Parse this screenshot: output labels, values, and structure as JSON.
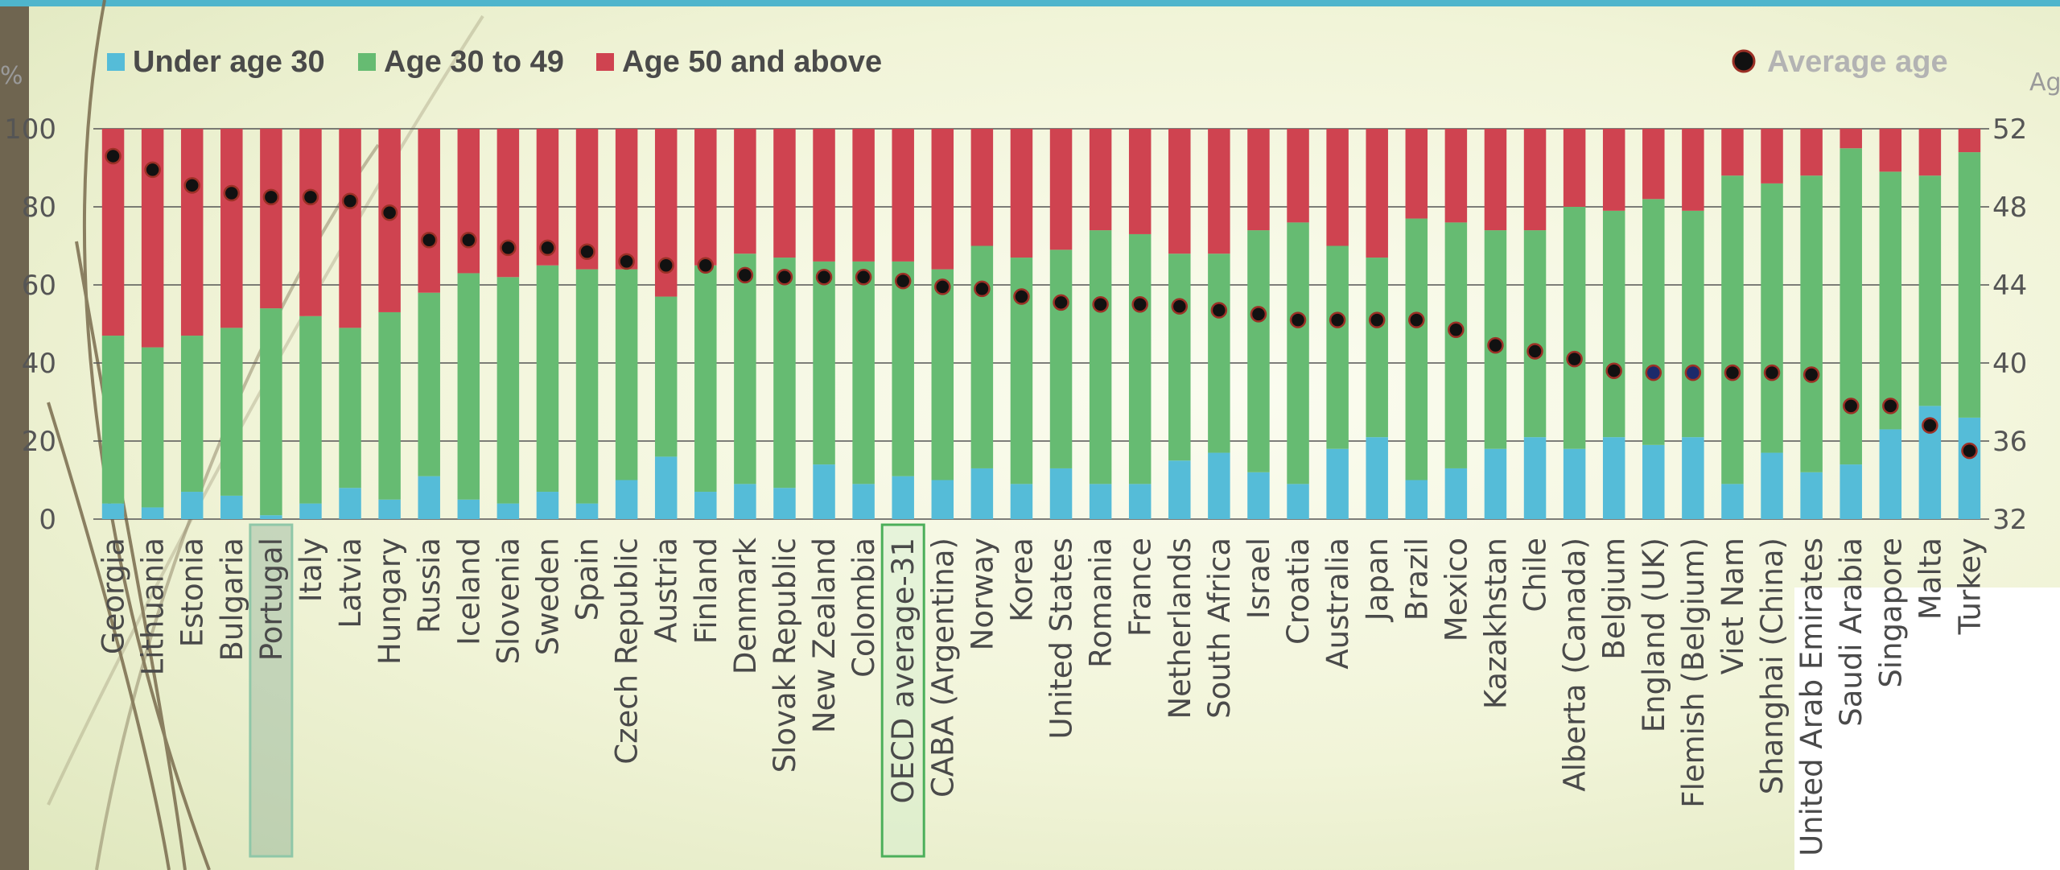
{
  "chart_data": {
    "type": "bar",
    "stacked": true,
    "categories": [
      "Georgia",
      "Lithuania",
      "Estonia",
      "Bulgaria",
      "Portugal",
      "Italy",
      "Latvia",
      "Hungary",
      "Russia",
      "Iceland",
      "Slovenia",
      "Sweden",
      "Spain",
      "Czech Republic",
      "Austria",
      "Finland",
      "Denmark",
      "Slovak Republic",
      "New Zealand",
      "Colombia",
      "OECD average-31",
      "CABA (Argentina)",
      "Norway",
      "Korea",
      "United States",
      "Romania",
      "France",
      "Netherlands",
      "South Africa",
      "Israel",
      "Croatia",
      "Australia",
      "Japan",
      "Brazil",
      "Mexico",
      "Kazakhstan",
      "Chile",
      "Alberta (Canada)",
      "Belgium",
      "England (UK)",
      "Flemish (Belgium)",
      "Viet Nam",
      "Shanghai (China)",
      "United Arab Emirates",
      "Saudi Arabia",
      "Singapore",
      "Malta",
      "Turkey"
    ],
    "highlighted_categories": [
      "Portugal",
      "OECD average-31"
    ],
    "series": [
      {
        "name": "Under age 30",
        "color": "#55bcd8",
        "values": [
          4,
          3,
          7,
          6,
          1,
          4,
          8,
          5,
          11,
          5,
          4,
          7,
          4,
          10,
          16,
          7,
          9,
          8,
          14,
          9,
          11,
          10,
          13,
          9,
          13,
          9,
          9,
          15,
          17,
          12,
          9,
          18,
          21,
          10,
          13,
          18,
          21,
          18,
          21,
          19,
          21,
          9,
          17,
          12,
          14,
          23,
          29,
          26
        ]
      },
      {
        "name": "Age 30 to 49",
        "color": "#66bb72",
        "values": [
          43,
          41,
          40,
          43,
          53,
          48,
          41,
          48,
          47,
          58,
          58,
          58,
          60,
          54,
          41,
          58,
          59,
          59,
          52,
          57,
          55,
          54,
          57,
          58,
          56,
          65,
          64,
          53,
          51,
          62,
          67,
          52,
          46,
          67,
          63,
          56,
          53,
          62,
          58,
          63,
          58,
          79,
          69,
          76,
          81,
          66,
          59,
          68
        ]
      },
      {
        "name": "Age 50 and above",
        "color": "#cf4350",
        "values": [
          53,
          56,
          53,
          51,
          46,
          48,
          51,
          47,
          42,
          37,
          38,
          35,
          36,
          36,
          43,
          35,
          32,
          33,
          34,
          34,
          34,
          36,
          30,
          33,
          31,
          26,
          27,
          32,
          32,
          26,
          24,
          30,
          33,
          23,
          24,
          26,
          26,
          20,
          21,
          18,
          21,
          12,
          14,
          12,
          5,
          11,
          12,
          6
        ]
      }
    ],
    "average_age": {
      "name": "Average age",
      "values": [
        50.6,
        49.9,
        49.1,
        48.7,
        48.5,
        48.5,
        48.3,
        47.7,
        46.3,
        46.3,
        45.9,
        45.9,
        45.7,
        45.2,
        45.0,
        45.0,
        44.5,
        44.4,
        44.4,
        44.4,
        44.2,
        43.9,
        43.8,
        43.4,
        43.1,
        43.0,
        43.0,
        42.9,
        42.7,
        42.5,
        42.2,
        42.2,
        42.2,
        42.2,
        41.7,
        40.9,
        40.6,
        40.2,
        39.6,
        39.5,
        39.5,
        39.5,
        39.5,
        39.4,
        37.8,
        37.8,
        36.8,
        35.5
      ]
    },
    "y_left": {
      "label": "%",
      "ticks": [
        "0",
        "20",
        "40",
        "60",
        "80",
        "100"
      ],
      "range": [
        0,
        100
      ]
    },
    "y_right": {
      "label": "Age",
      "ticks": [
        "32",
        "36",
        "40",
        "44",
        "48",
        "52"
      ],
      "range": [
        32,
        52
      ]
    },
    "legend": [
      {
        "label": "Under age 30",
        "color": "#55bcd8"
      },
      {
        "label": "Age 30 to 49",
        "color": "#66bb72"
      },
      {
        "label": "Age 50 and above",
        "color": "#cf4350"
      },
      {
        "label": "Average age",
        "marker": "dot"
      }
    ],
    "grid": true,
    "legend_position": "top"
  }
}
